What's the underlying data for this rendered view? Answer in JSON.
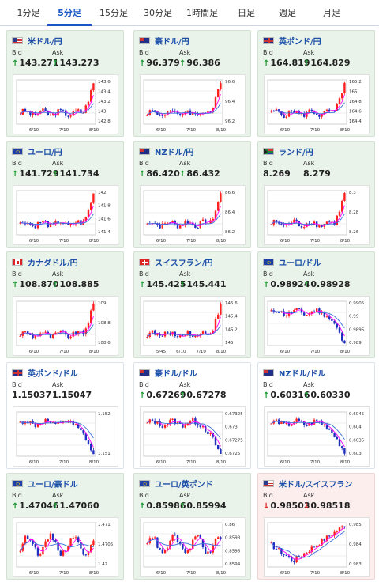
{
  "tabs": [
    {
      "label": "1分足",
      "active": false
    },
    {
      "label": "5分足",
      "active": true
    },
    {
      "label": "15分足",
      "active": false
    },
    {
      "label": "30分足",
      "active": false
    },
    {
      "label": "1時間足",
      "active": false
    },
    {
      "label": "日足",
      "active": false
    },
    {
      "label": "週足",
      "active": false
    },
    {
      "label": "月足",
      "active": false
    }
  ],
  "labels": {
    "bid": "Bid",
    "ask": "Ask"
  },
  "colors": {
    "up": "#1a9a2e",
    "down": "#d22222",
    "ma_short": "#ff00ff",
    "ma_long": "#3a6fd8",
    "candle_up": "#ff2020",
    "candle_down": "#1f2fbf"
  },
  "cards": [
    {
      "pair": "米ドル/円",
      "bid": "143.271",
      "ask": "143.273",
      "dir": "up",
      "flag": "us",
      "ticks_y": [
        "143.6",
        "143.4",
        "143.2",
        "143",
        "142.8"
      ],
      "ticks_x": [
        "6/10",
        "7/10",
        "8/10"
      ],
      "trend": "jump",
      "bg": "green"
    },
    {
      "pair": "豪ドル/円",
      "bid": "96.379",
      "ask": "96.386",
      "dir": "up",
      "flag": "au",
      "ticks_y": [
        "96.6",
        "96.4",
        "96.2"
      ],
      "ticks_x": [
        "6/10",
        "7/10",
        "8/10"
      ],
      "trend": "jump",
      "bg": "green"
    },
    {
      "pair": "英ポンド/円",
      "bid": "164.819",
      "ask": "164.829",
      "dir": "up",
      "flag": "uk",
      "ticks_y": [
        "165.2",
        "165",
        "164.8",
        "164.6",
        "164.4"
      ],
      "ticks_x": [
        "6/10",
        "7/10",
        "8/10"
      ],
      "trend": "jump",
      "bg": "green"
    },
    {
      "pair": "ユーロ/円",
      "bid": "141.729",
      "ask": "141.734",
      "dir": "up",
      "flag": "eu",
      "ticks_y": [
        "142",
        "141.8",
        "141.6",
        "141.4"
      ],
      "ticks_x": [
        "6/10",
        "7/10",
        "8/10"
      ],
      "trend": "jump",
      "bg": "green"
    },
    {
      "pair": "NZドル/円",
      "bid": "86.420",
      "ask": "86.432",
      "dir": "up",
      "flag": "nz",
      "ticks_y": [
        "86.6",
        "86.4",
        "86.2"
      ],
      "ticks_x": [
        "6/10",
        "7/10",
        "8/10"
      ],
      "trend": "jump",
      "bg": "green"
    },
    {
      "pair": "ランド/円",
      "bid": "8.269",
      "ask": "8.279",
      "dir": "none",
      "flag": "za",
      "ticks_y": [
        "8.3",
        "8.28",
        "8.26"
      ],
      "ticks_x": [
        "6/10",
        "7/10",
        "8/10"
      ],
      "trend": "jump",
      "bg": "green"
    },
    {
      "pair": "カナダドル/円",
      "bid": "108.870",
      "ask": "108.885",
      "dir": "up",
      "flag": "ca",
      "ticks_y": [
        "109",
        "108.8",
        "108.6"
      ],
      "ticks_x": [
        "6/10",
        "7/10",
        "8/10"
      ],
      "trend": "jump",
      "bg": "green"
    },
    {
      "pair": "スイスフラン/円",
      "bid": "145.425",
      "ask": "145.441",
      "dir": "up",
      "flag": "ch",
      "ticks_y": [
        "145.6",
        "145.4",
        "145.2",
        "145"
      ],
      "ticks_x": [
        "5/45",
        "6/10",
        "7/10",
        "8/10"
      ],
      "trend": "jump",
      "bg": "green"
    },
    {
      "pair": "ユーロ/ドル",
      "bid": "0.98924",
      "ask": "0.98928",
      "dir": "up",
      "flag": "eu",
      "ticks_y": [
        "0.9905",
        "0.99",
        "0.9895",
        "0.989"
      ],
      "ticks_x": [
        "6/10",
        "7/10",
        "8/10"
      ],
      "trend": "drop",
      "bg": "green"
    },
    {
      "pair": "英ポンド/ドル",
      "bid": "1.15037",
      "ask": "1.15047",
      "dir": "none",
      "flag": "uk",
      "ticks_y": [
        "1.152",
        "1.151"
      ],
      "ticks_x": [
        "6/10",
        "7/10",
        "8/10"
      ],
      "trend": "drop",
      "bg": "white"
    },
    {
      "pair": "豪ドル/ドル",
      "bid": "0.67269",
      "ask": "0.67278",
      "dir": "up",
      "flag": "au",
      "ticks_y": [
        "0.67325",
        "0.673",
        "0.67275",
        "0.6725"
      ],
      "ticks_x": [
        "6/10",
        "7/10",
        "8/10"
      ],
      "trend": "drop",
      "bg": "white"
    },
    {
      "pair": "NZドル/ドル",
      "bid": "0.60316",
      "ask": "0.60330",
      "dir": "up",
      "flag": "nz",
      "ticks_y": [
        "0.6045",
        "0.604",
        "0.6035",
        "0.603"
      ],
      "ticks_x": [
        "6/10",
        "7/10",
        "8/10"
      ],
      "trend": "drop",
      "bg": "white"
    },
    {
      "pair": "ユーロ/豪ドル",
      "bid": "1.47046",
      "ask": "1.47060",
      "dir": "up",
      "flag": "eu",
      "ticks_y": [
        "1.471",
        "1.4705",
        "1.47"
      ],
      "ticks_x": [
        "6/10",
        "7/10",
        "8/10"
      ],
      "trend": "range",
      "bg": "green"
    },
    {
      "pair": "ユーロ/英ポンド",
      "bid": "0.85986",
      "ask": "0.85994",
      "dir": "up",
      "flag": "eu",
      "ticks_y": [
        "0.86",
        "0.8598",
        "0.8596",
        "0.8594"
      ],
      "ticks_x": [
        "6/10",
        "7/10",
        "8/10"
      ],
      "trend": "range",
      "bg": "green"
    },
    {
      "pair": "米ドル/スイスフラン",
      "bid": "0.98503",
      "ask": "0.98518",
      "dir": "down",
      "flag": "us",
      "ticks_y": [
        "0.985",
        "0.984",
        "0.983"
      ],
      "ticks_x": [
        "6/10",
        "7/10",
        "8/10"
      ],
      "trend": "vshape",
      "bg": "pink"
    }
  ]
}
